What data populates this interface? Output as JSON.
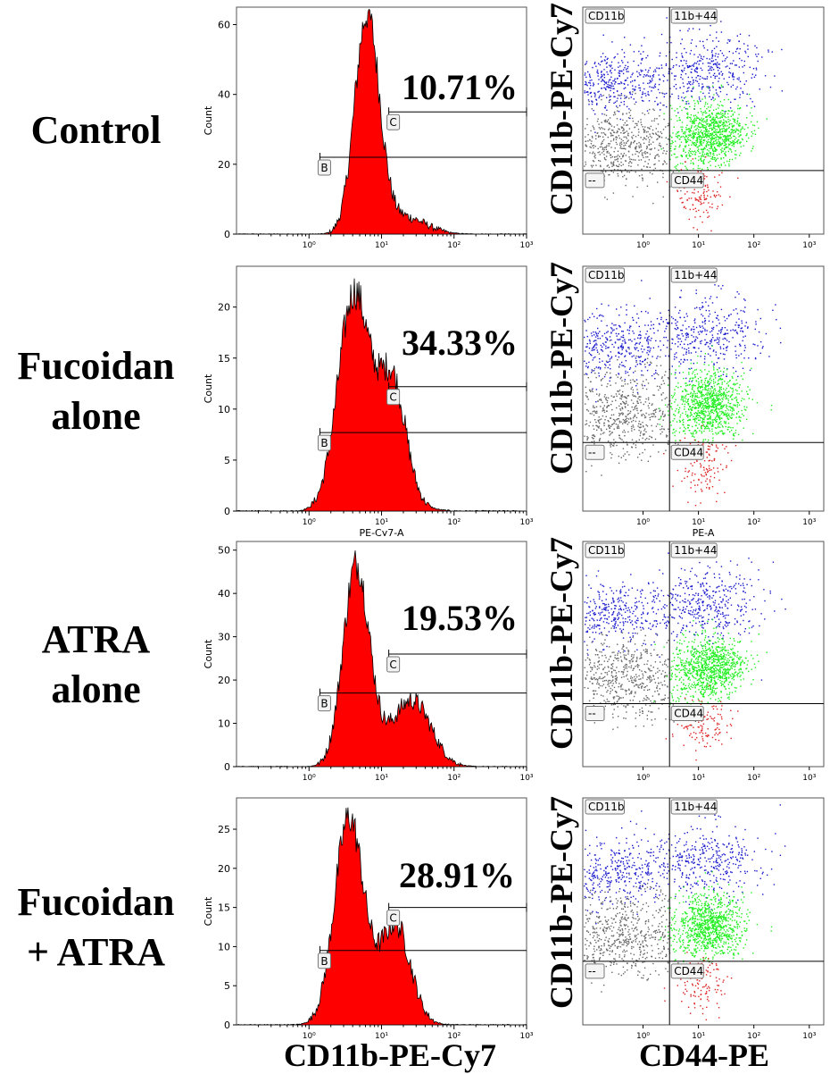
{
  "rows": [
    {
      "label_lines": [
        "Control"
      ],
      "percent": "10.71%",
      "hist": {
        "ymax": 65,
        "yticks": [
          0,
          20,
          40,
          60
        ],
        "peak_log": 0.8,
        "peak_h": 62,
        "sigma": 0.17,
        "shoulder": null,
        "gate_c_y": 35,
        "gate_b_y": 22,
        "xlabel": ""
      },
      "scatter": {
        "xlabel": "",
        "quads": {
          "tl": "CD11b",
          "tr": "11b+44",
          "bl": "--",
          "br": "CD44"
        }
      }
    },
    {
      "label_lines": [
        "Fucoidan",
        "alone"
      ],
      "percent": "34.33%",
      "hist": {
        "ymax": 24,
        "yticks": [
          0,
          5,
          10,
          15,
          20
        ],
        "peak_log": 0.62,
        "peak_h": 21,
        "sigma": 0.22,
        "shoulder": {
          "at": 1.15,
          "h": 11,
          "s": 0.18
        },
        "gate_c_y": 12.2,
        "gate_b_y": 7.7,
        "xlabel": "PE-Cy7-A"
      },
      "scatter": {
        "xlabel": "PE-A",
        "quads": {
          "tl": "CD11b",
          "tr": "11b+44",
          "bl": "--",
          "br": "CD44"
        }
      }
    },
    {
      "label_lines": [
        "ATRA",
        "alone"
      ],
      "percent": "19.53%",
      "hist": {
        "ymax": 52,
        "yticks": [
          0,
          10,
          20,
          30,
          40,
          50
        ],
        "peak_log": 0.65,
        "peak_h": 46,
        "sigma": 0.18,
        "shoulder": {
          "at": 1.45,
          "h": 13,
          "s": 0.25
        },
        "gate_c_y": 26,
        "gate_b_y": 17,
        "xlabel": ""
      },
      "scatter": {
        "xlabel": "",
        "quads": {
          "tl": "CD11b",
          "tr": "11b+44",
          "bl": "--",
          "br": "CD44"
        }
      }
    },
    {
      "label_lines": [
        "Fucoidan",
        "+ ATRA"
      ],
      "percent": "28.91%",
      "hist": {
        "ymax": 29,
        "yticks": [
          0,
          5,
          10,
          15,
          20,
          25
        ],
        "peak_log": 0.55,
        "peak_h": 26,
        "sigma": 0.2,
        "shoulder": {
          "at": 1.2,
          "h": 11,
          "s": 0.2
        },
        "gate_c_y": 15,
        "gate_b_y": 9.5,
        "xlabel": ""
      },
      "scatter": {
        "xlabel": "",
        "quads": {
          "tl": "CD11b",
          "tr": "11b+44",
          "bl": "--",
          "br": "CD44"
        }
      }
    }
  ],
  "hist_common": {
    "ylabel": "Count",
    "gate_b": "B",
    "gate_c": "C",
    "xticks": [
      "10⁰",
      "10¹",
      "10²",
      "10³"
    ]
  },
  "scatter_common": {
    "ylabel": "CD11b-PE-Cy7",
    "xticks": [
      "10⁰",
      "10¹",
      "10²",
      "10³"
    ]
  },
  "bottom": {
    "left": "CD11b-PE-Cy7",
    "right": "CD44-PE"
  },
  "colors": {
    "hist_fill": "#ff0000",
    "hist_line": "#000000",
    "q_tl": "#1a1acc",
    "q_tr_green": "#22ee22",
    "q_bl": "#666666",
    "q_br": "#dd2222"
  },
  "chart_data": [
    {
      "type": "histogram",
      "title": "Control",
      "xlabel": "",
      "ylabel": "Count",
      "x_scale": "log",
      "xlim": [
        0.1,
        1000
      ],
      "ylim": [
        0,
        65
      ],
      "annotation": "10.71%",
      "gates": [
        "B",
        "C"
      ]
    },
    {
      "type": "histogram",
      "title": "Fucoidan alone",
      "xlabel": "PE-Cy7-A",
      "ylabel": "Count",
      "x_scale": "log",
      "xlim": [
        0.1,
        1000
      ],
      "ylim": [
        0,
        24
      ],
      "annotation": "34.33%",
      "gates": [
        "B",
        "C"
      ]
    },
    {
      "type": "histogram",
      "title": "ATRA alone",
      "xlabel": "",
      "ylabel": "Count",
      "x_scale": "log",
      "xlim": [
        0.1,
        1000
      ],
      "ylim": [
        0,
        52
      ],
      "annotation": "19.53%",
      "gates": [
        "B",
        "C"
      ]
    },
    {
      "type": "histogram",
      "title": "Fucoidan + ATRA",
      "xlabel": "",
      "ylabel": "Count",
      "x_scale": "log",
      "xlim": [
        0.1,
        1000
      ],
      "ylim": [
        0,
        29
      ],
      "annotation": "28.91%",
      "gates": [
        "B",
        "C"
      ]
    },
    {
      "type": "scatter",
      "title": "Control",
      "xlabel": "CD44-PE",
      "ylabel": "CD11b-PE-Cy7",
      "quadrants": [
        "CD11b",
        "11b+44",
        "--",
        "CD44"
      ]
    },
    {
      "type": "scatter",
      "title": "Fucoidan alone",
      "xlabel": "PE-A",
      "ylabel": "CD11b-PE-Cy7",
      "quadrants": [
        "CD11b",
        "11b+44",
        "--",
        "CD44"
      ]
    },
    {
      "type": "scatter",
      "title": "ATRA alone",
      "xlabel": "CD44-PE",
      "ylabel": "CD11b-PE-Cy7",
      "quadrants": [
        "CD11b",
        "11b+44",
        "--",
        "CD44"
      ]
    },
    {
      "type": "scatter",
      "title": "Fucoidan + ATRA",
      "xlabel": "CD44-PE",
      "ylabel": "CD11b-PE-Cy7",
      "quadrants": [
        "CD11b",
        "11b+44",
        "--",
        "CD44"
      ]
    }
  ]
}
